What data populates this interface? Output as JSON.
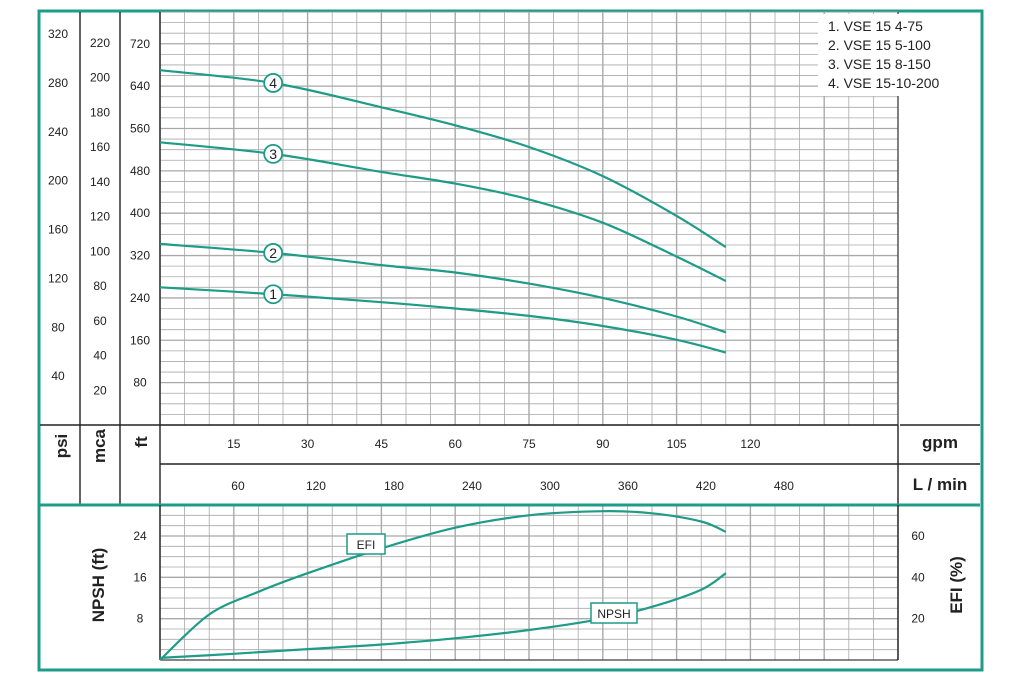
{
  "chart_data": [
    {
      "type": "line",
      "title": "",
      "legend": {
        "placement": "top-right",
        "entries": [
          "1. VSE 15 4-75",
          "2. VSE 15 5-100",
          "3. VSE 15 8-150",
          "4. VSE 15-10-200"
        ]
      },
      "axes": {
        "psi": {
          "label": "psi",
          "ticks": [
            40,
            80,
            120,
            160,
            200,
            240,
            280,
            320
          ]
        },
        "mca": {
          "label": "mca",
          "ticks": [
            20,
            40,
            60,
            80,
            100,
            120,
            140,
            160,
            180,
            200,
            220
          ]
        },
        "ft": {
          "label": "ft",
          "ticks": [
            80,
            160,
            240,
            320,
            400,
            480,
            560,
            640,
            720
          ],
          "ylim": [
            0,
            780
          ]
        },
        "gpm": {
          "label": "gpm",
          "ticks": [
            15,
            30,
            45,
            60,
            75,
            90,
            105,
            120
          ],
          "xlim": [
            0,
            150
          ]
        },
        "lmin": {
          "label": "L / min",
          "ticks": [
            60,
            120,
            180,
            240,
            300,
            360,
            420,
            480
          ]
        }
      },
      "grid": true,
      "x_unit": "gpm",
      "y_unit": "ft",
      "series": [
        {
          "name": "1",
          "x": [
            0,
            23,
            45,
            60,
            75,
            90,
            105,
            115
          ],
          "values": [
            260,
            247,
            232,
            220,
            206,
            187,
            161,
            137
          ]
        },
        {
          "name": "2",
          "x": [
            0,
            23,
            45,
            60,
            75,
            90,
            105,
            115
          ],
          "values": [
            342,
            325,
            302,
            288,
            267,
            240,
            205,
            175
          ]
        },
        {
          "name": "3",
          "x": [
            0,
            23,
            45,
            60,
            75,
            90,
            105,
            115
          ],
          "values": [
            534,
            512,
            478,
            456,
            426,
            382,
            318,
            272
          ]
        },
        {
          "name": "4",
          "x": [
            0,
            23,
            45,
            60,
            75,
            90,
            105,
            115
          ],
          "values": [
            670,
            646,
            600,
            566,
            525,
            470,
            395,
            336
          ]
        }
      ]
    },
    {
      "type": "line",
      "title": "",
      "axes": {
        "npsh": {
          "label": "NPSH (ft)",
          "ticks": [
            8,
            16,
            24
          ],
          "ylim": [
            0,
            30
          ]
        },
        "efi": {
          "label": "EFI (%)",
          "ticks": [
            20,
            40,
            60
          ],
          "ylim": [
            0,
            75
          ]
        }
      },
      "grid": true,
      "x_unit": "gpm",
      "series": [
        {
          "name": "EFI",
          "axis": "efi",
          "x": [
            0,
            10,
            20,
            30,
            45,
            60,
            75,
            90,
            100,
            110,
            115
          ],
          "values": [
            0,
            22,
            33,
            42,
            54,
            64,
            70,
            72,
            71,
            67,
            62
          ]
        },
        {
          "name": "NPSH",
          "axis": "npsh",
          "x": [
            0,
            15,
            30,
            45,
            60,
            75,
            90,
            100,
            110,
            115
          ],
          "values": [
            0.4,
            1.2,
            2.1,
            3.0,
            4.2,
            5.8,
            8.0,
            10.3,
            13.6,
            16.8
          ]
        }
      ]
    }
  ]
}
